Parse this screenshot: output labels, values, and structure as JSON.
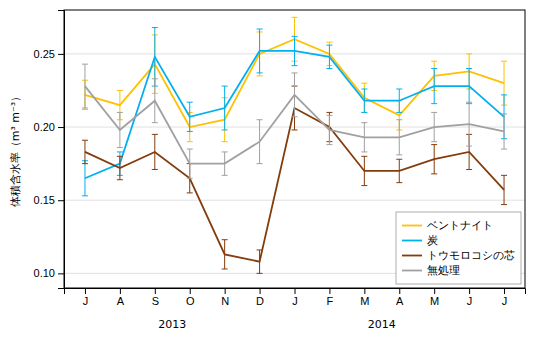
{
  "chart_data": {
    "type": "line",
    "categories": [
      "J",
      "A",
      "S",
      "O",
      "N",
      "D",
      "J",
      "F",
      "M",
      "A",
      "M",
      "J",
      "J"
    ],
    "series": [
      {
        "name": "ベントナイト",
        "color": "#FFC000",
        "values": [
          0.222,
          0.215,
          0.243,
          0.2,
          0.205,
          0.25,
          0.26,
          0.25,
          0.22,
          0.208,
          0.235,
          0.238,
          0.23
        ],
        "errors": [
          0.01,
          0.01,
          0.02,
          0.01,
          0.015,
          0.015,
          0.015,
          0.008,
          0.01,
          0.01,
          0.01,
          0.012,
          0.015
        ]
      },
      {
        "name": "炭",
        "color": "#00B0F0",
        "values": [
          0.165,
          0.175,
          0.248,
          0.207,
          0.213,
          0.252,
          0.252,
          0.248,
          0.218,
          0.218,
          0.228,
          0.228,
          0.207
        ],
        "errors": [
          0.012,
          0.008,
          0.02,
          0.01,
          0.015,
          0.015,
          0.01,
          0.008,
          0.008,
          0.008,
          0.012,
          0.012,
          0.015
        ]
      },
      {
        "name": "トウモロコシの芯",
        "color": "#843C0C",
        "values": [
          0.183,
          0.172,
          0.183,
          0.165,
          0.113,
          0.108,
          0.213,
          0.2,
          0.17,
          0.17,
          0.178,
          0.183,
          0.157
        ],
        "errors": [
          0.008,
          0.008,
          0.012,
          0.01,
          0.01,
          0.008,
          0.015,
          0.01,
          0.01,
          0.008,
          0.01,
          0.012,
          0.01
        ]
      },
      {
        "name": "無処理",
        "color": "#A0A0A0",
        "values": [
          0.228,
          0.198,
          0.218,
          0.175,
          0.175,
          0.19,
          0.222,
          0.198,
          0.193,
          0.193,
          0.2,
          0.202,
          0.197
        ],
        "errors": [
          0.015,
          0.012,
          0.015,
          0.01,
          0.008,
          0.015,
          0.015,
          0.01,
          0.01,
          0.012,
          0.01,
          0.015,
          0.012
        ]
      }
    ],
    "y_label": "体積含水率（m³ m⁻³）",
    "ylim": [
      0.09,
      0.28
    ],
    "yticks": [
      {
        "value": 0.1,
        "label": "0.10"
      },
      0.15,
      {
        "value": 0.2,
        "label": "0.20"
      },
      0.25
    ],
    "annotations": [
      {
        "text": "2013",
        "x": 2.5
      },
      {
        "text": "2014",
        "x": 8.5
      }
    ],
    "grid": true,
    "legend": "lower right"
  }
}
